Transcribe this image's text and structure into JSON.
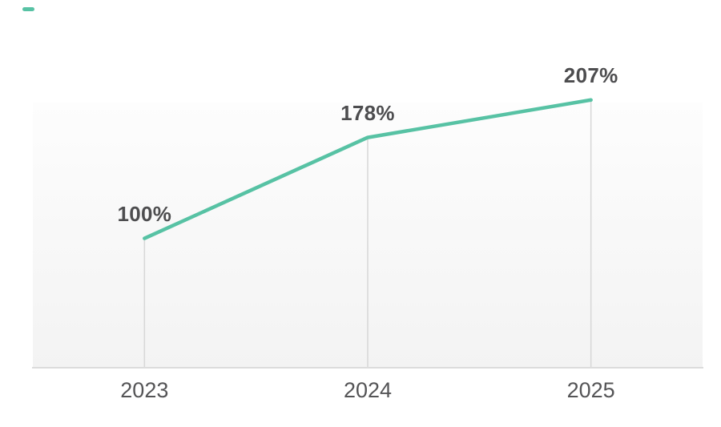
{
  "legend": {
    "series_marker_color": "#57c2a4"
  },
  "chart_data": {
    "type": "line",
    "categories": [
      "2023",
      "2024",
      "2025"
    ],
    "values": [
      100,
      178,
      207
    ],
    "data_labels": [
      "100%",
      "178%",
      "207%"
    ],
    "unit": "%",
    "title": "",
    "xlabel": "",
    "ylabel": "",
    "ylim": [
      0,
      205
    ],
    "grid": "vertical-droplines-only",
    "legend_position": "top-left-marker-only",
    "colors": {
      "line": "#57c2a4",
      "data_label": "#4d4d4f",
      "tick_label": "#545456",
      "axis_line": "#dcdcdc",
      "dropline": "#d7d7d7",
      "plot_bg_top": "#fdfdfd",
      "plot_bg_bottom": "#f3f3f3"
    }
  }
}
